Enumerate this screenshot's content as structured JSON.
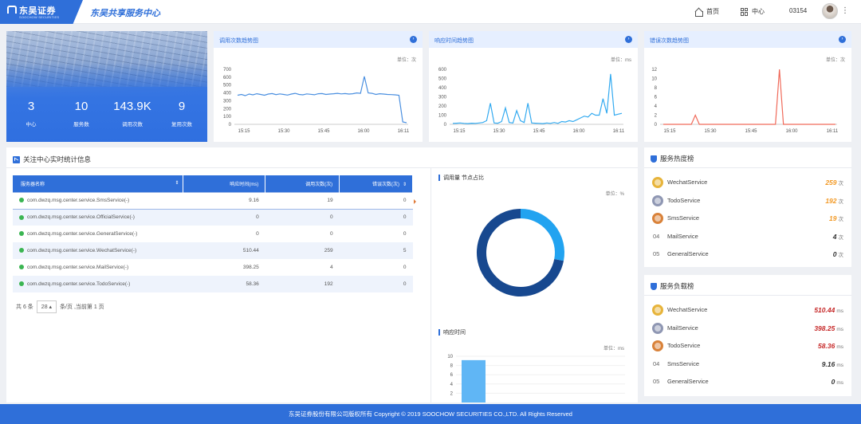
{
  "header": {
    "logo_cn": "东吴证券",
    "logo_en": "SOOCHOW SECURITIES",
    "app_title": "东吴共享服务中心",
    "home_label": "首页",
    "center_label": "中心",
    "user_id": "03154",
    "more": "⋮"
  },
  "stats": [
    {
      "value": "3",
      "label": "中心"
    },
    {
      "value": "10",
      "label": "服务数"
    },
    {
      "value": "143.9K",
      "label": "调用次数"
    },
    {
      "value": "9",
      "label": "复用次数"
    }
  ],
  "trend_charts": {
    "calls": {
      "title": "调用次数趋势图",
      "unit": "单位：次",
      "chart_data": {
        "type": "line",
        "title": "调用次数趋势图",
        "x_ticks": [
          "15:15",
          "15:30",
          "15:45",
          "16:00",
          "16:11"
        ],
        "y_ticks": [
          0,
          100,
          200,
          300,
          400,
          500,
          600,
          700
        ],
        "ylim": [
          0,
          700
        ],
        "color": "#4a8fe0",
        "values": [
          370,
          380,
          365,
          385,
          375,
          390,
          380,
          370,
          385,
          392,
          378,
          388,
          380,
          372,
          386,
          395,
          380,
          375,
          388,
          382,
          376,
          390,
          392,
          380,
          385,
          390,
          395,
          388,
          392,
          385,
          390,
          400,
          395,
          610,
          400,
          395,
          380,
          390,
          385,
          380,
          378,
          375,
          370,
          30,
          20
        ]
      }
    },
    "response": {
      "title": "响应时间趋势图",
      "unit": "单位：ms",
      "chart_data": {
        "type": "line",
        "title": "响应时间趋势图",
        "x_ticks": [
          "15:15",
          "15:30",
          "15:45",
          "16:00",
          "16:11"
        ],
        "y_ticks": [
          0,
          100,
          200,
          300,
          400,
          500,
          600
        ],
        "ylim": [
          0,
          600
        ],
        "color": "#33aaf0",
        "values": [
          10,
          12,
          15,
          10,
          8,
          12,
          10,
          15,
          20,
          40,
          230,
          15,
          12,
          30,
          180,
          20,
          15,
          150,
          40,
          20,
          230,
          15,
          12,
          10,
          8,
          15,
          10,
          20,
          10,
          30,
          25,
          40,
          30,
          50,
          70,
          90,
          80,
          120,
          100,
          100,
          280,
          120,
          550,
          100,
          110,
          120
        ]
      }
    },
    "errors": {
      "title": "错误次数趋势图",
      "unit": "单位：次",
      "chart_data": {
        "type": "line",
        "title": "错误次数趋势图",
        "x_ticks": [
          "15:15",
          "15:30",
          "15:45",
          "16:00",
          "16:11"
        ],
        "y_ticks": [
          0,
          2,
          4,
          6,
          8,
          10,
          12
        ],
        "ylim": [
          0,
          12
        ],
        "color": "#f06a5a",
        "values": [
          0,
          0,
          0,
          0,
          0,
          0,
          0,
          0,
          2,
          0,
          0,
          0,
          0,
          0,
          0,
          0,
          0,
          0,
          0,
          0,
          0,
          0,
          0,
          0,
          0,
          0,
          0,
          0,
          0,
          12,
          0,
          0,
          0,
          0,
          0,
          0,
          0,
          0,
          0,
          0,
          0,
          0,
          0,
          0
        ]
      }
    }
  },
  "realtime": {
    "title": "关注中心实时统计信息",
    "columns": [
      "服务器名称",
      "响应时间(ms)",
      "调用次数(次)",
      "错误次数(次)"
    ],
    "rows": [
      {
        "name": "com.dwzq.msg.center.service.SmsService(-)",
        "response": "9.16",
        "calls": "19",
        "errors": "0"
      },
      {
        "name": "com.dwzq.msg.center.service.OfficialService(-)",
        "response": "0",
        "calls": "0",
        "errors": "0"
      },
      {
        "name": "com.dwzq.msg.center.service.GeneralService(-)",
        "response": "0",
        "calls": "0",
        "errors": "0"
      },
      {
        "name": "com.dwzq.msg.center.service.WechatService(-)",
        "response": "510.44",
        "calls": "259",
        "errors": "5"
      },
      {
        "name": "com.dwzq.msg.center.service.MailService(-)",
        "response": "398.25",
        "calls": "4",
        "errors": "0"
      },
      {
        "name": "com.dwzq.msg.center.service.TodoService(-)",
        "response": "58.36",
        "calls": "192",
        "errors": "0"
      }
    ],
    "pager": {
      "total": "共 6 条",
      "page_size": "28",
      "suffix": "条/页 ,当前第 1 页"
    }
  },
  "donut": {
    "title": "调用量 节点占比",
    "unit": "单位：%",
    "chart_data": {
      "type": "pie",
      "values": [
        72,
        28
      ],
      "colors": [
        "#17488f",
        "#22a3f0"
      ]
    }
  },
  "response_bar": {
    "title": "响应时间",
    "unit": "单位：ms",
    "chart_data": {
      "type": "bar",
      "y_ticks": [
        2,
        4,
        6,
        8,
        10
      ],
      "ylim": [
        0,
        10
      ],
      "values": [
        9.16
      ],
      "color": "#60b6f5"
    }
  },
  "hot_rank": {
    "title": "服务热度榜",
    "unit": "次",
    "items": [
      {
        "rank": "",
        "name": "WechatService",
        "value": "259",
        "color": "#f29a27",
        "medal": "#e7b43b"
      },
      {
        "rank": "",
        "name": "TodoService",
        "value": "192",
        "color": "#f29a27",
        "medal": "#8f97b3"
      },
      {
        "rank": "",
        "name": "SmsService",
        "value": "19",
        "color": "#f29a27",
        "medal": "#d9823a"
      },
      {
        "rank": "04",
        "name": "MailService",
        "value": "4",
        "color": "#333333"
      },
      {
        "rank": "05",
        "name": "GeneralService",
        "value": "0",
        "color": "#333333"
      }
    ]
  },
  "load_rank": {
    "title": "服务负载榜",
    "unit": "ms",
    "items": [
      {
        "rank": "",
        "name": "WechatService",
        "value": "510.44",
        "color": "#c62828",
        "medal": "#e7b43b"
      },
      {
        "rank": "",
        "name": "MailService",
        "value": "398.25",
        "color": "#c62828",
        "medal": "#8f97b3"
      },
      {
        "rank": "",
        "name": "TodoService",
        "value": "58.36",
        "color": "#c62828",
        "medal": "#d9823a"
      },
      {
        "rank": "04",
        "name": "SmsService",
        "value": "9.16",
        "color": "#333333"
      },
      {
        "rank": "05",
        "name": "GeneralService",
        "value": "0",
        "color": "#333333"
      }
    ]
  },
  "footer": {
    "text": "东吴证券股份有限公司版权所有 Copyright © 2019 SOOCHOW SECURITIES CO.,LTD. All Rights Reserved"
  }
}
